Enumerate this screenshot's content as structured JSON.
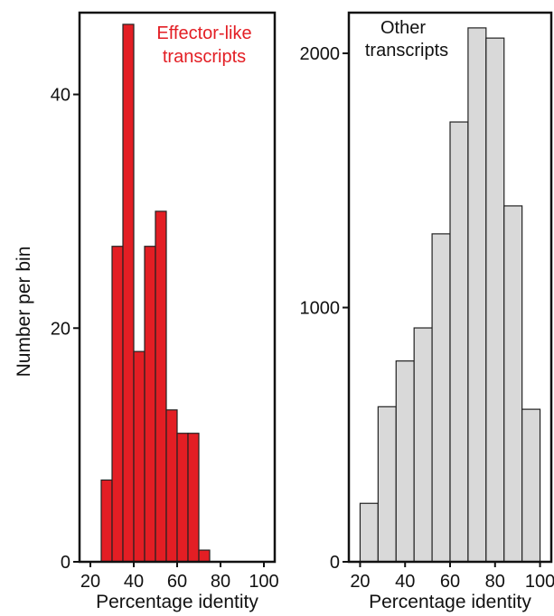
{
  "chart_data": [
    {
      "type": "bar",
      "annotation": [
        "Effector-like",
        "transcripts"
      ],
      "annotation_color": "#e31e24",
      "xlabel": "Percentage identity",
      "ylabel": "Number per bin",
      "xlim": [
        15,
        105
      ],
      "ylim": [
        0,
        47
      ],
      "x_ticks": [
        20,
        40,
        60,
        80,
        100
      ],
      "y_ticks": [
        0,
        20,
        40
      ],
      "bar_color": "#e31e24",
      "bins": [
        {
          "x0": 25,
          "x1": 30,
          "value": 7
        },
        {
          "x0": 30,
          "x1": 35,
          "value": 27
        },
        {
          "x0": 35,
          "x1": 40,
          "value": 46
        },
        {
          "x0": 40,
          "x1": 45,
          "value": 18
        },
        {
          "x0": 45,
          "x1": 50,
          "value": 27
        },
        {
          "x0": 50,
          "x1": 55,
          "value": 30
        },
        {
          "x0": 55,
          "x1": 60,
          "value": 13
        },
        {
          "x0": 60,
          "x1": 65,
          "value": 11
        },
        {
          "x0": 65,
          "x1": 70,
          "value": 11
        },
        {
          "x0": 70,
          "x1": 75,
          "value": 1
        }
      ],
      "grid": false
    },
    {
      "type": "bar",
      "annotation": [
        "Other",
        "transcripts"
      ],
      "annotation_color": "#111111",
      "xlabel": "Percentage identity",
      "ylabel": "",
      "xlim": [
        15,
        105
      ],
      "ylim": [
        0,
        2160
      ],
      "x_ticks": [
        20,
        40,
        60,
        80,
        100
      ],
      "y_ticks": [
        0,
        1000,
        2000
      ],
      "bar_color": "#d9d9d9",
      "bins": [
        {
          "x0": 20,
          "x1": 28,
          "value": 230
        },
        {
          "x0": 28,
          "x1": 36,
          "value": 610
        },
        {
          "x0": 36,
          "x1": 44,
          "value": 790
        },
        {
          "x0": 44,
          "x1": 52,
          "value": 920
        },
        {
          "x0": 52,
          "x1": 60,
          "value": 1290
        },
        {
          "x0": 60,
          "x1": 68,
          "value": 1730
        },
        {
          "x0": 68,
          "x1": 76,
          "value": 2100
        },
        {
          "x0": 76,
          "x1": 84,
          "value": 2060
        },
        {
          "x0": 84,
          "x1": 92,
          "value": 1400
        },
        {
          "x0": 92,
          "x1": 100,
          "value": 600
        }
      ],
      "grid": false
    }
  ]
}
